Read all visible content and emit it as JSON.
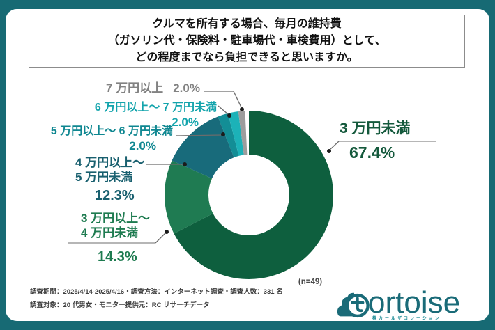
{
  "frame": {
    "border_color": "#176A74",
    "card_color": "#ffffff"
  },
  "title": {
    "line1": "クルマを所有する場合、毎月の維持費",
    "line2": "（ガソリン代・保険料・駐車場代・車検費用）として、",
    "line3": "どの程度までなら負担できると思いますか。"
  },
  "chart_data": {
    "type": "pie",
    "donut": true,
    "start_angle": "top",
    "direction": "clockwise",
    "title": "クルマを所有する場合、毎月の維持費（ガソリン代・保険料・駐車場代・車検費用）として、どの程度までなら負担できると思いますか。",
    "n_label": "(n=49)",
    "legend_position": "callouts",
    "segments": [
      {
        "label": "3 万円未満",
        "value": 67.4,
        "display_pct": "67.4%",
        "color": "#0E5F3E"
      },
      {
        "label": "3 万円以上〜4 万円未満",
        "value": 14.3,
        "display_pct": "14.3%",
        "color": "#1F7B52"
      },
      {
        "label": "4 万円以上〜5 万円未満",
        "value": 12.3,
        "display_pct": "12.3%",
        "color": "#186B7B"
      },
      {
        "label": "5 万円以上〜6 万円未満",
        "value": 2.0,
        "display_pct": "2.0%",
        "color": "#138E96"
      },
      {
        "label": "6 万円以上〜7 万円未満",
        "value": 2.0,
        "display_pct": "2.0%",
        "color": "#1CB2B8"
      },
      {
        "label": "7 万円以上",
        "value": 2.0,
        "display_pct": "2.0%",
        "color": "#9D9D9D"
      }
    ]
  },
  "callouts": {
    "seg3": {
      "line1": "3 万円未満",
      "pct": "67.4%",
      "color": "#14593C"
    },
    "seg34": {
      "line1": "3 万円以上〜",
      "line2": "4 万円未満",
      "pct": "14.3%",
      "color": "#1E7B50"
    },
    "seg45": {
      "line1": "4 万円以上〜",
      "line2": "5 万円未満",
      "pct": "12.3%",
      "color": "#19606F"
    },
    "seg56": {
      "line1": "5 万円以上〜 6 万円未満",
      "pct": "2.0%",
      "color": "#0F8791"
    },
    "seg67": {
      "line1": "6 万円以上〜 7 万円未満",
      "pct": "2.0%",
      "color": "#13A4AC"
    },
    "seg7": {
      "line1": "7 万円以上",
      "pct": "2.0%",
      "color": "#828282"
    }
  },
  "note": {
    "n": "(n=49)"
  },
  "footer": {
    "line1": "調査期間：2025/4/14-2025/4/16・調査方法：インターネット調査・調査人数：331 名",
    "line2": "調査対象：20 代男女・モニター提供元：RC リサーチデータ"
  },
  "logo": {
    "text": "ortoise",
    "subtext": "株カールザコレーション",
    "color": "#1A6B78"
  }
}
